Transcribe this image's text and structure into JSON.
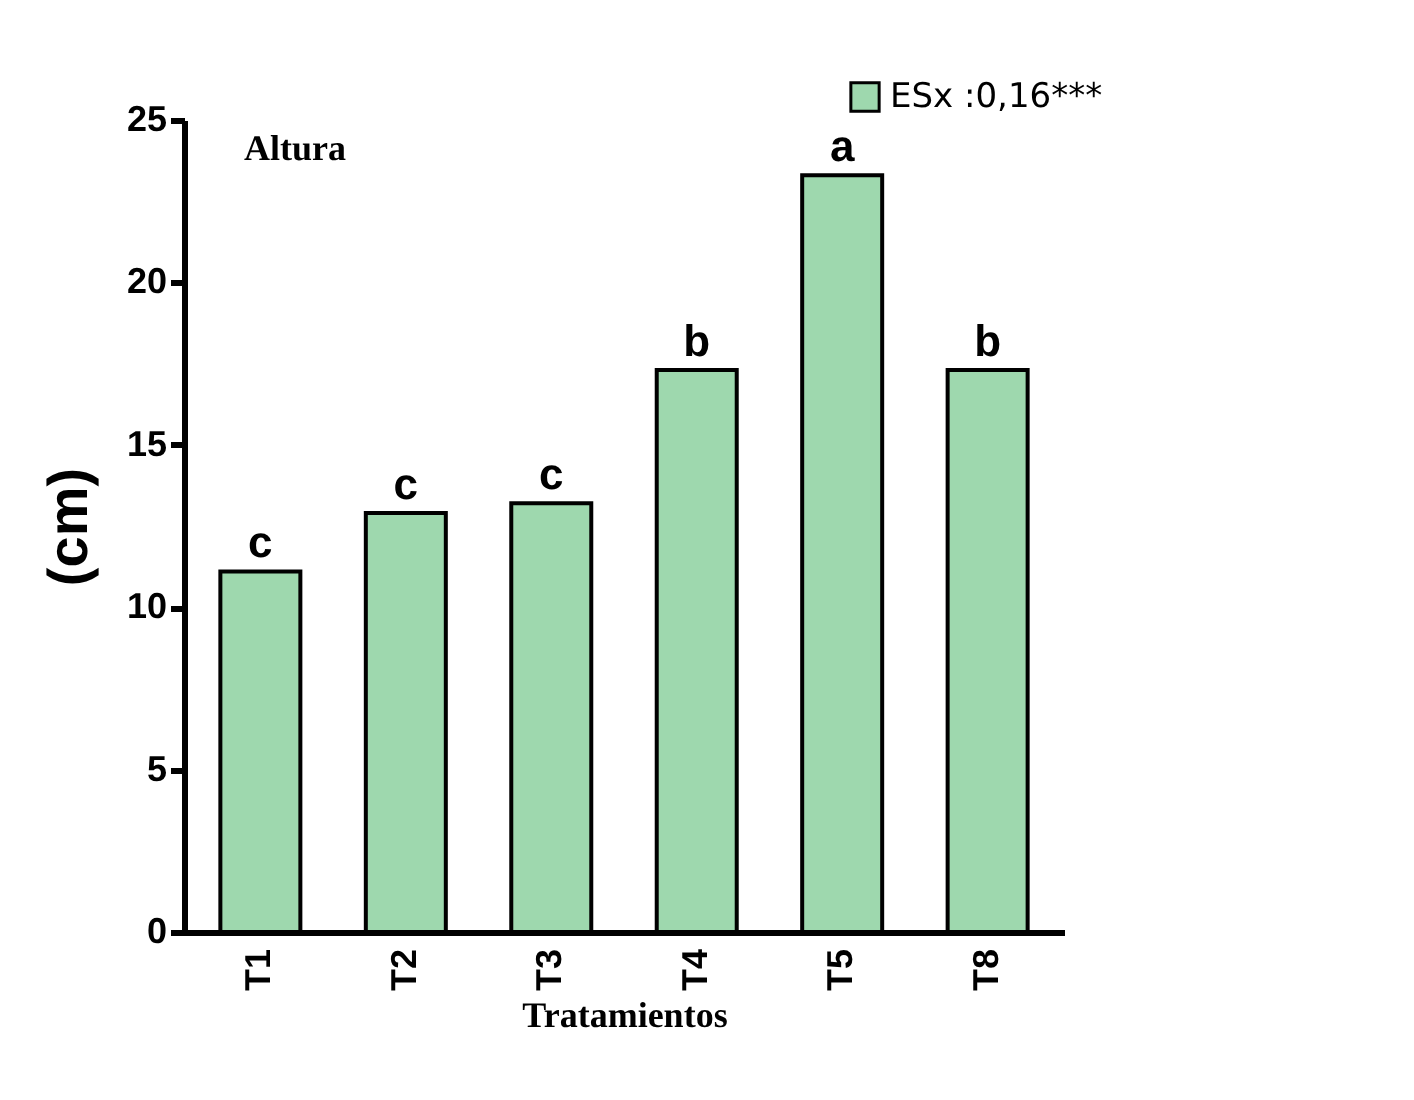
{
  "chart_data": {
    "type": "bar",
    "title": "Altura",
    "xlabel": "Tratamientos",
    "ylabel": "(cm)",
    "categories": [
      "T1",
      "T2",
      "T3",
      "T4",
      "T5",
      "T8"
    ],
    "series": [
      {
        "name": "ESx :0,16***",
        "color": "#9ed8ae",
        "values": [
          11.1,
          12.9,
          13.2,
          17.3,
          23.3,
          17.3
        ]
      }
    ],
    "ylim": [
      0,
      25
    ],
    "yticks": [
      0,
      5,
      10,
      15,
      20,
      25
    ],
    "grid": false,
    "legend": "top right",
    "annotations": [
      {
        "text": "c",
        "x": "T1",
        "y": 11.1
      },
      {
        "text": "c",
        "x": "T2",
        "y": 12.9
      },
      {
        "text": "c",
        "x": "T3",
        "y": 13.2
      },
      {
        "text": "b",
        "x": "T4",
        "y": 17.3
      },
      {
        "text": "a",
        "x": "T5",
        "y": 23.3
      },
      {
        "text": "b",
        "x": "T8",
        "y": 17.3
      }
    ]
  }
}
